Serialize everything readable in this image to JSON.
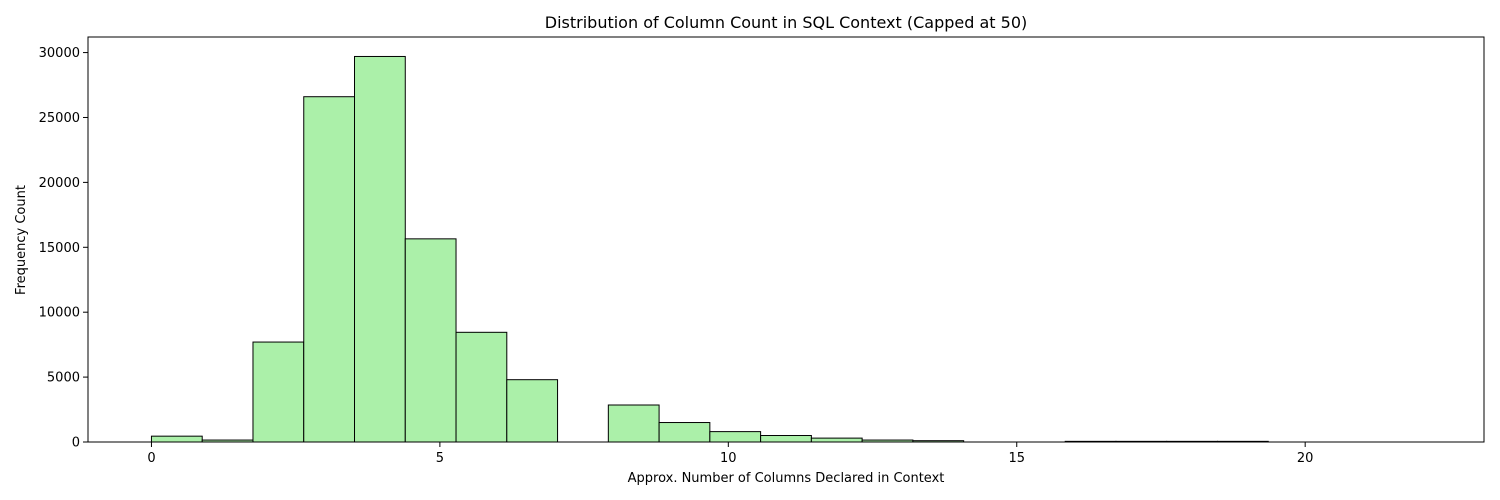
{
  "chart_data": {
    "type": "bar",
    "title": "Distribution of Column Count in SQL Context (Capped at 50)",
    "xlabel": "Approx. Number of Columns Declared in Context",
    "ylabel": "Frequency Count",
    "xlim": [
      -1.1,
      23.1
    ],
    "ylim": [
      0,
      31200
    ],
    "xticks": [
      0,
      5,
      10,
      15,
      20
    ],
    "yticks": [
      0,
      5000,
      10000,
      15000,
      20000,
      25000,
      30000
    ],
    "bin_start": 0,
    "bin_width": 0.88,
    "values": [
      450,
      150,
      7700,
      26600,
      29700,
      15650,
      8450,
      4800,
      0,
      2850,
      1500,
      800,
      500,
      300,
      150,
      100,
      0,
      0,
      50,
      50,
      50,
      50,
      0,
      0,
      0
    ],
    "colors": {
      "bar_fill": "#abf0a9",
      "bar_edge": "#000000"
    },
    "grid": false,
    "legend": "none"
  }
}
